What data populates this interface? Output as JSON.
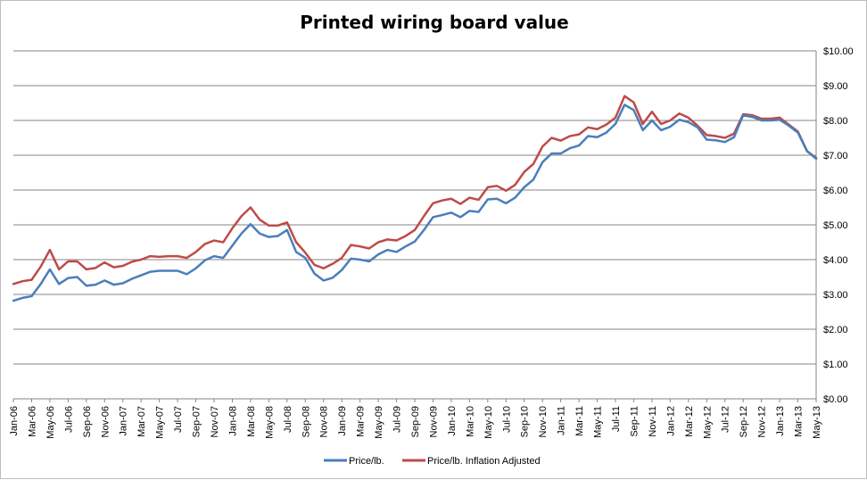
{
  "chart_data": {
    "type": "line",
    "title": "Printed wiring board value",
    "xlabel": "",
    "ylabel": "",
    "ylim": [
      0,
      10
    ],
    "y_ticks": [
      "$0.00",
      "$1.00",
      "$2.00",
      "$3.00",
      "$4.00",
      "$5.00",
      "$6.00",
      "$7.00",
      "$8.00",
      "$9.00",
      "$10.00"
    ],
    "y_axis_position": "right",
    "grid": "horizontal",
    "legend_position": "bottom",
    "x_tick_labels": [
      "Jan-06",
      "Mar-06",
      "May-06",
      "Jul-06",
      "Sep-06",
      "Nov-06",
      "Jan-07",
      "Mar-07",
      "May-07",
      "Jul-07",
      "Sep-07",
      "Nov-07",
      "Jan-08",
      "Mar-08",
      "May-08",
      "Jul-08",
      "Sep-08",
      "Nov-08",
      "Jan-09",
      "Mar-09",
      "May-09",
      "Jul-09",
      "Sep-09",
      "Nov-09",
      "Jan-10",
      "Mar-10",
      "May-10",
      "Jul-10",
      "Sep-10",
      "Nov-10",
      "Jan-11",
      "Mar-11",
      "May-11",
      "Jul-11",
      "Sep-11",
      "Nov-11",
      "Jan-12",
      "Mar-12",
      "May-12",
      "Jul-12",
      "Sep-12",
      "Nov-12",
      "Jan-13",
      "Mar-13",
      "May-13"
    ],
    "x": [
      "Jan-06",
      "Feb-06",
      "Mar-06",
      "Apr-06",
      "May-06",
      "Jun-06",
      "Jul-06",
      "Aug-06",
      "Sep-06",
      "Oct-06",
      "Nov-06",
      "Dec-06",
      "Jan-07",
      "Feb-07",
      "Mar-07",
      "Apr-07",
      "May-07",
      "Jun-07",
      "Jul-07",
      "Aug-07",
      "Sep-07",
      "Oct-07",
      "Nov-07",
      "Dec-07",
      "Jan-08",
      "Feb-08",
      "Mar-08",
      "Apr-08",
      "May-08",
      "Jun-08",
      "Jul-08",
      "Aug-08",
      "Sep-08",
      "Oct-08",
      "Nov-08",
      "Dec-08",
      "Jan-09",
      "Feb-09",
      "Mar-09",
      "Apr-09",
      "May-09",
      "Jun-09",
      "Jul-09",
      "Aug-09",
      "Sep-09",
      "Oct-09",
      "Nov-09",
      "Dec-09",
      "Jan-10",
      "Feb-10",
      "Mar-10",
      "Apr-10",
      "May-10",
      "Jun-10",
      "Jul-10",
      "Aug-10",
      "Sep-10",
      "Oct-10",
      "Nov-10",
      "Dec-10",
      "Jan-11",
      "Feb-11",
      "Mar-11",
      "Apr-11",
      "May-11",
      "Jun-11",
      "Jul-11",
      "Aug-11",
      "Sep-11",
      "Oct-11",
      "Nov-11",
      "Dec-11",
      "Jan-12",
      "Feb-12",
      "Mar-12",
      "Apr-12",
      "May-12",
      "Jun-12",
      "Jul-12",
      "Aug-12",
      "Sep-12",
      "Oct-12",
      "Nov-12",
      "Dec-12",
      "Jan-13",
      "Feb-13",
      "Mar-13",
      "Apr-13",
      "May-13"
    ],
    "series": [
      {
        "name": "Price/lb.",
        "color": "#4a7ebb",
        "values": [
          2.82,
          2.9,
          2.95,
          3.3,
          3.72,
          3.3,
          3.47,
          3.5,
          3.25,
          3.28,
          3.4,
          3.28,
          3.32,
          3.45,
          3.55,
          3.65,
          3.68,
          3.68,
          3.68,
          3.58,
          3.75,
          3.98,
          4.1,
          4.05,
          4.4,
          4.75,
          5.02,
          4.75,
          4.65,
          4.68,
          4.85,
          4.22,
          4.05,
          3.6,
          3.4,
          3.48,
          3.7,
          4.03,
          4.0,
          3.95,
          4.15,
          4.28,
          4.22,
          4.38,
          4.52,
          4.85,
          5.22,
          5.28,
          5.35,
          5.22,
          5.4,
          5.37,
          5.73,
          5.75,
          5.62,
          5.78,
          6.08,
          6.3,
          6.8,
          7.05,
          7.05,
          7.2,
          7.28,
          7.55,
          7.52,
          7.65,
          7.9,
          8.45,
          8.3,
          7.72,
          8.0,
          7.72,
          7.82,
          8.02,
          7.95,
          7.8,
          7.45,
          7.43,
          7.38,
          7.52,
          8.15,
          8.1,
          8.0,
          8.0,
          8.02,
          7.85,
          7.65,
          7.12,
          6.9
        ]
      },
      {
        "name": "Price/lb. Inflation Adjusted",
        "color": "#be4b48",
        "values": [
          3.3,
          3.38,
          3.42,
          3.8,
          4.28,
          3.72,
          3.95,
          3.95,
          3.72,
          3.76,
          3.92,
          3.78,
          3.82,
          3.94,
          4.0,
          4.1,
          4.08,
          4.1,
          4.1,
          4.05,
          4.22,
          4.45,
          4.55,
          4.5,
          4.9,
          5.25,
          5.5,
          5.15,
          4.98,
          4.98,
          5.07,
          4.5,
          4.2,
          3.85,
          3.75,
          3.88,
          4.05,
          4.42,
          4.38,
          4.32,
          4.5,
          4.58,
          4.55,
          4.68,
          4.85,
          5.25,
          5.62,
          5.7,
          5.75,
          5.6,
          5.78,
          5.72,
          6.08,
          6.12,
          5.98,
          6.15,
          6.52,
          6.75,
          7.25,
          7.5,
          7.42,
          7.55,
          7.6,
          7.8,
          7.75,
          7.88,
          8.08,
          8.7,
          8.52,
          7.9,
          8.25,
          7.9,
          8.0,
          8.2,
          8.08,
          7.85,
          7.58,
          7.55,
          7.5,
          7.62,
          8.18,
          8.15,
          8.05,
          8.05,
          8.08,
          7.88,
          7.68,
          7.12,
          6.92
        ]
      }
    ]
  }
}
